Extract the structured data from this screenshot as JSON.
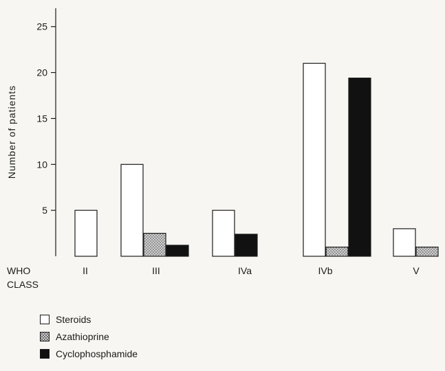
{
  "chart_data": {
    "type": "bar",
    "xlabel": "WHO CLASS",
    "ylabel": "Number of patients",
    "ylim": [
      0,
      27
    ],
    "yticks": [
      5,
      10,
      15,
      20,
      25
    ],
    "categories": [
      "II",
      "III",
      "IVa",
      "IVb",
      "V"
    ],
    "series": [
      {
        "name": "Steroids",
        "values": [
          5,
          10,
          5,
          21,
          3
        ],
        "color": "#ffffff",
        "pattern": "none"
      },
      {
        "name": "Azathioprine",
        "values": [
          null,
          2.5,
          null,
          1,
          1
        ],
        "color": "#b0b0b0",
        "pattern": "stipple"
      },
      {
        "name": "Cyclophosphamide",
        "values": [
          null,
          1.2,
          2.4,
          19.4,
          null
        ],
        "color": "#111111",
        "pattern": "solid"
      }
    ],
    "grid": false,
    "legend_position": "bottom-left"
  }
}
